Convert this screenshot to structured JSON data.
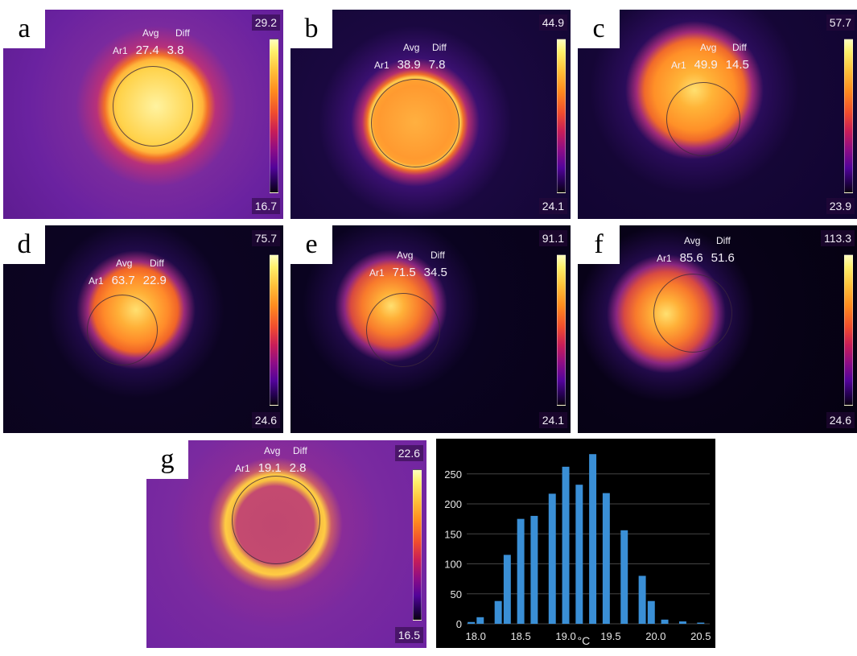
{
  "panels": [
    {
      "letter": "a",
      "avg_label": "Avg",
      "diff_label": "Diff",
      "area": "Ar1",
      "avg": "27.4",
      "diff": "3.8",
      "scale_max": "29.2",
      "scale_min": "16.7"
    },
    {
      "letter": "b",
      "avg_label": "Avg",
      "diff_label": "Diff",
      "area": "Ar1",
      "avg": "38.9",
      "diff": "7.8",
      "scale_max": "44.9",
      "scale_min": "24.1"
    },
    {
      "letter": "c",
      "avg_label": "Avg",
      "diff_label": "Diff",
      "area": "Ar1",
      "avg": "49.9",
      "diff": "14.5",
      "scale_max": "57.7",
      "scale_min": "23.9"
    },
    {
      "letter": "d",
      "avg_label": "Avg",
      "diff_label": "Diff",
      "area": "Ar1",
      "avg": "63.7",
      "diff": "22.9",
      "scale_max": "75.7",
      "scale_min": "24.6"
    },
    {
      "letter": "e",
      "avg_label": "Avg",
      "diff_label": "Diff",
      "area": "Ar1",
      "avg": "71.5",
      "diff": "34.5",
      "scale_max": "91.1",
      "scale_min": "24.1"
    },
    {
      "letter": "f",
      "avg_label": "Avg",
      "diff_label": "Diff",
      "area": "Ar1",
      "avg": "85.6",
      "diff": "51.6",
      "scale_max": "113.3",
      "scale_min": "24.6"
    },
    {
      "letter": "g",
      "avg_label": "Avg",
      "diff_label": "Diff",
      "area": "Ar1",
      "avg": "19.1",
      "diff": "2.8",
      "scale_max": "22.6",
      "scale_min": "16.5"
    }
  ],
  "histogram": {
    "xlabel": "°C",
    "x_ticks": [
      "18.0",
      "18.5",
      "19.0",
      "19.5",
      "20.0",
      "20.5"
    ],
    "y_ticks": [
      "0",
      "50",
      "100",
      "150",
      "200",
      "250"
    ],
    "bar_color": "#3a8fd6"
  },
  "chart_data": {
    "type": "bar",
    "xlabel": "°C",
    "ylabel": "",
    "ylim": [
      0,
      290
    ],
    "xlim": [
      17.9,
      20.6
    ],
    "bar_width_c": 0.08,
    "x": [
      17.95,
      18.05,
      18.25,
      18.35,
      18.5,
      18.65,
      18.85,
      19.0,
      19.15,
      19.3,
      19.45,
      19.65,
      19.85,
      19.95,
      20.1,
      20.3,
      20.5
    ],
    "values": [
      3,
      11,
      38,
      115,
      175,
      180,
      217,
      262,
      232,
      283,
      218,
      156,
      80,
      38,
      7,
      4,
      2
    ]
  },
  "colors": {
    "bg_cold_a": "#5a1a8c",
    "bg_dark": "#0e0420",
    "hot_core": "#ffd040"
  }
}
